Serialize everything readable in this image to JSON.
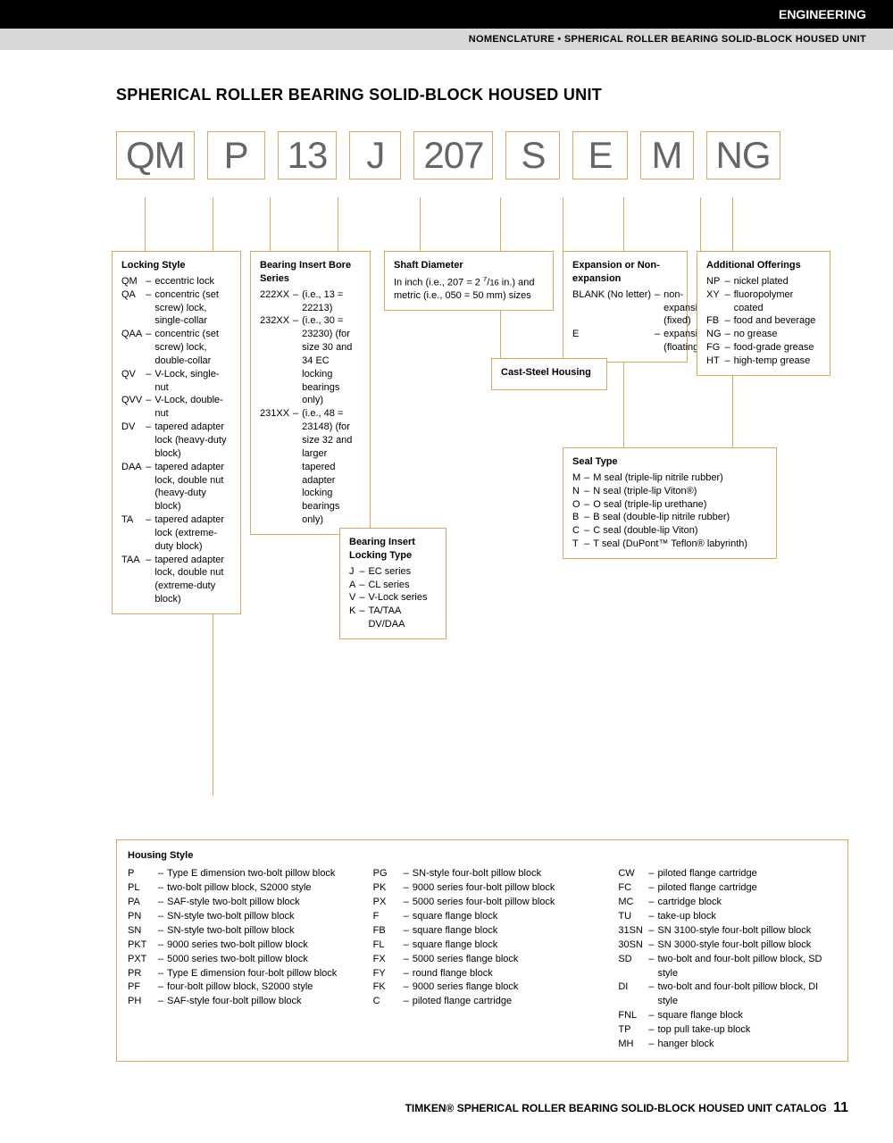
{
  "header": {
    "category": "ENGINEERING",
    "subtitle": "NOMENCLATURE • SPHERICAL ROLLER BEARING SOLID-BLOCK HOUSED UNIT"
  },
  "title": "SPHERICAL ROLLER BEARING SOLID-BLOCK HOUSED UNIT",
  "codes": [
    "QM",
    "P",
    "13",
    "J",
    "207",
    "S",
    "E",
    "M",
    "NG"
  ],
  "boxes": {
    "locking_style": {
      "title": "Locking Style",
      "items": [
        {
          "c": "QM",
          "d": "eccentric lock"
        },
        {
          "c": "QA",
          "d": "concentric (set screw) lock, single-collar"
        },
        {
          "c": "QAA",
          "d": "concentric (set screw) lock, double-collar"
        },
        {
          "c": "QV",
          "d": "V-Lock, single-nut"
        },
        {
          "c": "QVV",
          "d": "V-Lock, double-nut"
        },
        {
          "c": "DV",
          "d": "tapered adapter lock (heavy-duty block)"
        },
        {
          "c": "DAA",
          "d": "tapered adapter lock, double nut (heavy-duty block)"
        },
        {
          "c": "TA",
          "d": "tapered adapter lock (extreme-duty block)"
        },
        {
          "c": "TAA",
          "d": "tapered adapter lock, double nut (extreme-duty block)"
        }
      ]
    },
    "bore_series": {
      "title": "Bearing Insert Bore Series",
      "items": [
        {
          "c": "222XX",
          "d": "(i.e., 13 = 22213)"
        },
        {
          "c": "232XX",
          "d": "(i.e., 30 = 23230) (for size 30 and 34 EC locking bearings only)"
        },
        {
          "c": "231XX",
          "d": "(i.e., 48 = 23148) (for size 32 and larger tapered adapter locking bearings only)"
        }
      ]
    },
    "locking_type": {
      "title": "Bearing Insert Locking Type",
      "items": [
        {
          "c": "J",
          "d": "EC series"
        },
        {
          "c": "A",
          "d": "CL series"
        },
        {
          "c": "V",
          "d": "V-Lock series"
        },
        {
          "c": "K",
          "d": "TA/TAA DV/DAA"
        }
      ]
    },
    "shaft_diameter": {
      "title": "Shaft Diameter",
      "desc_a": "In inch (i.e., 207 = 2 ",
      "desc_b": " in.) and metric (i.e., 050 = 50 mm) sizes"
    },
    "cast_steel": "Cast-Steel Housing",
    "expansion": {
      "title": "Expansion or Non-expansion",
      "items": [
        {
          "c": "BLANK (No letter)",
          "d": "non-expansion (fixed)"
        },
        {
          "c": "E",
          "d": "expansion (floating)"
        }
      ]
    },
    "seal_type": {
      "title": "Seal Type",
      "items": [
        {
          "c": "M",
          "d": "M seal (triple-lip nitrile rubber)"
        },
        {
          "c": "N",
          "d": "N seal (triple-lip Viton®)"
        },
        {
          "c": "O",
          "d": "O seal (triple-lip urethane)"
        },
        {
          "c": "B",
          "d": "B seal (double-lip nitrile rubber)"
        },
        {
          "c": "C",
          "d": "C seal (double-lip Viton)"
        },
        {
          "c": "T",
          "d": "T seal (DuPont™ Teflon® labyrinth)"
        }
      ]
    },
    "additional": {
      "title": "Additional Offerings",
      "items": [
        {
          "c": "NP",
          "d": "nickel plated"
        },
        {
          "c": "XY",
          "d": "fluoropolymer coated"
        },
        {
          "c": "FB",
          "d": "food and beverage"
        },
        {
          "c": "NG",
          "d": "no grease"
        },
        {
          "c": "FG",
          "d": "food-grade grease"
        },
        {
          "c": "HT",
          "d": "high-temp grease"
        }
      ]
    }
  },
  "housing": {
    "title": "Housing Style",
    "col1": [
      {
        "c": "P",
        "d": "Type E dimension two-bolt pillow block"
      },
      {
        "c": "PL",
        "d": "two-bolt pillow block, S2000 style"
      },
      {
        "c": "PA",
        "d": "SAF-style two-bolt pillow block"
      },
      {
        "c": "PN",
        "d": "SN-style two-bolt pillow block"
      },
      {
        "c": "SN",
        "d": "SN-style two-bolt pillow block"
      },
      {
        "c": "PKT",
        "d": "9000 series two-bolt pillow block"
      },
      {
        "c": "PXT",
        "d": "5000 series two-bolt pillow block"
      },
      {
        "c": "PR",
        "d": "Type E dimension four-bolt pillow block"
      },
      {
        "c": "PF",
        "d": "four-bolt pillow block, S2000 style"
      },
      {
        "c": "PH",
        "d": "SAF-style four-bolt pillow block"
      }
    ],
    "col2": [
      {
        "c": "PG",
        "d": "SN-style four-bolt pillow block"
      },
      {
        "c": "PK",
        "d": "9000 series four-bolt pillow block"
      },
      {
        "c": "PX",
        "d": "5000 series four-bolt pillow block"
      },
      {
        "c": "F",
        "d": "square flange block"
      },
      {
        "c": "FB",
        "d": "square flange block"
      },
      {
        "c": "FL",
        "d": "square flange block"
      },
      {
        "c": "FX",
        "d": "5000 series flange block"
      },
      {
        "c": "FY",
        "d": "round flange block"
      },
      {
        "c": "FK",
        "d": "9000 series flange block"
      },
      {
        "c": "C",
        "d": "piloted flange cartridge"
      }
    ],
    "col3": [
      {
        "c": "CW",
        "d": "piloted flange cartridge"
      },
      {
        "c": "FC",
        "d": "piloted flange cartridge"
      },
      {
        "c": "MC",
        "d": "cartridge block"
      },
      {
        "c": "TU",
        "d": "take-up block"
      },
      {
        "c": "31SN",
        "d": "SN 3100-style four-bolt pillow block"
      },
      {
        "c": "30SN",
        "d": "SN 3000-style four-bolt pillow block"
      },
      {
        "c": "SD",
        "d": "two-bolt and four-bolt pillow block, SD style"
      },
      {
        "c": "DI",
        "d": "two-bolt and four-bolt pillow block, DI style"
      },
      {
        "c": "FNL",
        "d": "square flange block"
      },
      {
        "c": "TP",
        "d": "top pull take-up block"
      },
      {
        "c": "MH",
        "d": "hanger block"
      }
    ]
  },
  "footer": {
    "text": "TIMKEN® SPHERICAL ROLLER BEARING SOLID-BLOCK HOUSED UNIT CATALOG",
    "page": "11"
  },
  "colors": {
    "accent": "#d9a860",
    "text_gray": "#666"
  }
}
